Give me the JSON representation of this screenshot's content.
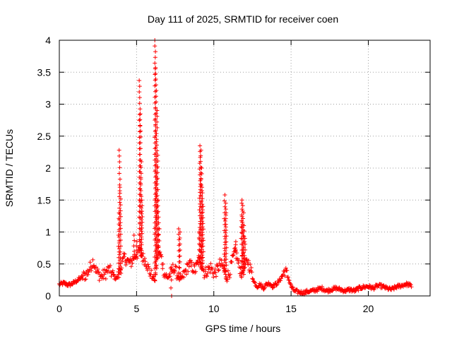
{
  "chart_data": {
    "type": "scatter",
    "title": "Day 111 of 2025, SRMTID for receiver coen",
    "xlabel": "GPS time / hours",
    "ylabel": "SRMTID / TECUs",
    "xlim": [
      0,
      24
    ],
    "ylim": [
      0,
      4
    ],
    "x_ticks": [
      "0",
      "5",
      "10",
      "15",
      "20"
    ],
    "x_tick_values": [
      0,
      5,
      10,
      15,
      20
    ],
    "y_ticks": [
      "0",
      "0.5",
      "1",
      "1.5",
      "2",
      "2.5",
      "3",
      "3.5",
      "4"
    ],
    "y_tick_values": [
      0,
      0.5,
      1,
      1.5,
      2,
      2.5,
      3,
      3.5,
      4
    ],
    "grid": true,
    "marker": "plus",
    "marker_color": "#ff0000",
    "series": [
      {
        "name": "SRMTID",
        "baseline": [
          [
            0.0,
            0.18
          ],
          [
            0.3,
            0.2
          ],
          [
            0.6,
            0.17
          ],
          [
            0.9,
            0.2
          ],
          [
            1.2,
            0.25
          ],
          [
            1.5,
            0.3
          ],
          [
            1.8,
            0.35
          ],
          [
            2.0,
            0.45
          ],
          [
            2.2,
            0.55
          ],
          [
            2.4,
            0.38
          ],
          [
            2.7,
            0.3
          ],
          [
            3.0,
            0.35
          ],
          [
            3.2,
            0.42
          ],
          [
            3.4,
            0.35
          ],
          [
            3.6,
            0.28
          ],
          [
            3.8,
            0.3
          ],
          [
            4.0,
            0.45
          ],
          [
            4.2,
            0.6
          ],
          [
            4.4,
            0.55
          ],
          [
            4.6,
            0.5
          ],
          [
            4.8,
            0.6
          ],
          [
            5.0,
            0.65
          ],
          [
            5.2,
            0.7
          ],
          [
            5.4,
            0.6
          ],
          [
            5.6,
            0.55
          ],
          [
            5.8,
            0.4
          ],
          [
            6.0,
            0.3
          ],
          [
            6.2,
            0.25
          ],
          [
            6.4,
            0.7
          ],
          [
            6.6,
            0.6
          ],
          [
            6.8,
            0.35
          ],
          [
            7.0,
            0.28
          ],
          [
            7.2,
            0.35
          ],
          [
            7.4,
            0.45
          ],
          [
            7.6,
            0.35
          ],
          [
            7.8,
            0.25
          ],
          [
            8.0,
            0.3
          ],
          [
            8.2,
            0.4
          ],
          [
            8.4,
            0.5
          ],
          [
            8.6,
            0.45
          ],
          [
            8.8,
            0.4
          ],
          [
            9.0,
            0.55
          ],
          [
            9.2,
            0.5
          ],
          [
            9.4,
            0.35
          ],
          [
            9.6,
            0.4
          ],
          [
            9.8,
            0.45
          ],
          [
            10.0,
            0.35
          ],
          [
            10.2,
            0.4
          ],
          [
            10.4,
            0.5
          ],
          [
            10.6,
            0.45
          ],
          [
            10.8,
            0.3
          ],
          [
            11.0,
            0.35
          ],
          [
            11.2,
            0.55
          ],
          [
            11.4,
            0.7
          ],
          [
            11.6,
            0.5
          ],
          [
            11.8,
            0.35
          ],
          [
            12.0,
            0.45
          ],
          [
            12.2,
            0.55
          ],
          [
            12.4,
            0.4
          ],
          [
            12.6,
            0.22
          ],
          [
            12.8,
            0.15
          ],
          [
            13.0,
            0.18
          ],
          [
            13.2,
            0.12
          ],
          [
            13.4,
            0.18
          ],
          [
            13.6,
            0.2
          ],
          [
            13.8,
            0.15
          ],
          [
            14.0,
            0.18
          ],
          [
            14.2,
            0.22
          ],
          [
            14.4,
            0.3
          ],
          [
            14.6,
            0.4
          ],
          [
            14.8,
            0.3
          ],
          [
            15.0,
            0.15
          ],
          [
            15.2,
            0.08
          ],
          [
            15.5,
            0.06
          ],
          [
            15.8,
            0.05
          ],
          [
            16.1,
            0.07
          ],
          [
            16.4,
            0.08
          ],
          [
            16.7,
            0.1
          ],
          [
            17.0,
            0.12
          ],
          [
            17.3,
            0.08
          ],
          [
            17.6,
            0.1
          ],
          [
            17.9,
            0.12
          ],
          [
            18.2,
            0.1
          ],
          [
            18.5,
            0.08
          ],
          [
            18.8,
            0.1
          ],
          [
            19.1,
            0.08
          ],
          [
            19.4,
            0.12
          ],
          [
            19.7,
            0.14
          ],
          [
            20.0,
            0.15
          ],
          [
            20.3,
            0.12
          ],
          [
            20.6,
            0.16
          ],
          [
            20.9,
            0.15
          ],
          [
            21.2,
            0.12
          ],
          [
            21.5,
            0.1
          ],
          [
            21.8,
            0.14
          ],
          [
            22.1,
            0.16
          ],
          [
            22.4,
            0.18
          ],
          [
            22.6,
            0.18
          ],
          [
            22.8,
            0.15
          ]
        ],
        "spikes": [
          [
            3.85,
            1.3
          ],
          [
            3.9,
            2.28
          ],
          [
            3.95,
            1.7
          ],
          [
            4.85,
            0.95
          ],
          [
            5.0,
            0.85
          ],
          [
            5.2,
            3.37
          ],
          [
            5.25,
            2.85
          ],
          [
            5.3,
            2.1
          ],
          [
            5.35,
            1.5
          ],
          [
            6.2,
            4.0
          ],
          [
            6.25,
            3.57
          ],
          [
            6.3,
            2.9
          ],
          [
            6.35,
            2.2
          ],
          [
            6.4,
            1.5
          ],
          [
            6.45,
            1.05
          ],
          [
            7.25,
            0.0
          ],
          [
            7.75,
            1.05
          ],
          [
            7.8,
            1.0
          ],
          [
            9.05,
            1.0
          ],
          [
            9.1,
            2.35
          ],
          [
            9.15,
            2.28
          ],
          [
            9.2,
            2.0
          ],
          [
            9.25,
            1.7
          ],
          [
            9.3,
            1.4
          ],
          [
            10.7,
            1.58
          ],
          [
            10.75,
            1.45
          ],
          [
            10.8,
            1.3
          ],
          [
            11.4,
            0.85
          ],
          [
            11.8,
            1.45
          ],
          [
            11.85,
            1.5
          ],
          [
            11.9,
            1.3
          ],
          [
            11.95,
            1.1
          ],
          [
            12.0,
            0.9
          ]
        ]
      }
    ]
  }
}
